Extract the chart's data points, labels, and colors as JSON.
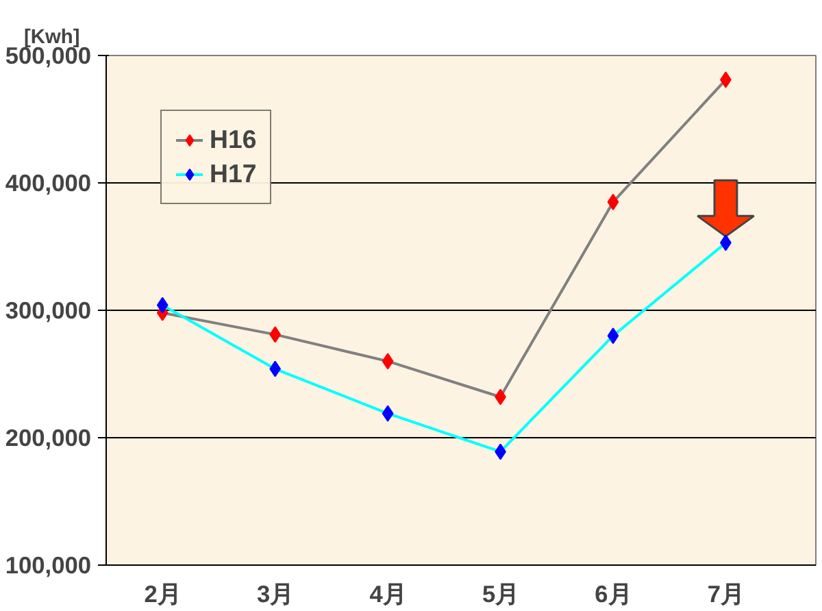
{
  "chart_data": {
    "type": "line",
    "ylabel": "[Kwh]",
    "categories": [
      "2月",
      "3月",
      "4月",
      "5月",
      "6月",
      "7月"
    ],
    "series": [
      {
        "name": "H16",
        "color": "#808080",
        "colors": [
          "#ff0000",
          "#ff0000",
          "#ff0000",
          "#ff0000",
          "#ff0000",
          "#ff0000"
        ],
        "values": [
          298000,
          281000,
          260000,
          232000,
          385000,
          481000
        ]
      },
      {
        "name": "H17",
        "color": "#00ffff",
        "colors": [
          "#0000ff",
          "#0000ff",
          "#0000ff",
          "#0000ff",
          "#0000ff",
          "#0000ff"
        ],
        "values": [
          304000,
          254000,
          219000,
          189000,
          280000,
          353000
        ]
      }
    ],
    "ylim": [
      100000,
      500000
    ],
    "yticks": [
      {
        "value": 100000,
        "label": "100,000"
      },
      {
        "value": 200000,
        "label": "200,000"
      },
      {
        "value": 300000,
        "label": "300,000"
      },
      {
        "value": 400000,
        "label": "400,000"
      },
      {
        "value": 500000,
        "label": "500,000"
      }
    ],
    "grid": "y",
    "legend": "top left",
    "marker": "diamond"
  }
}
